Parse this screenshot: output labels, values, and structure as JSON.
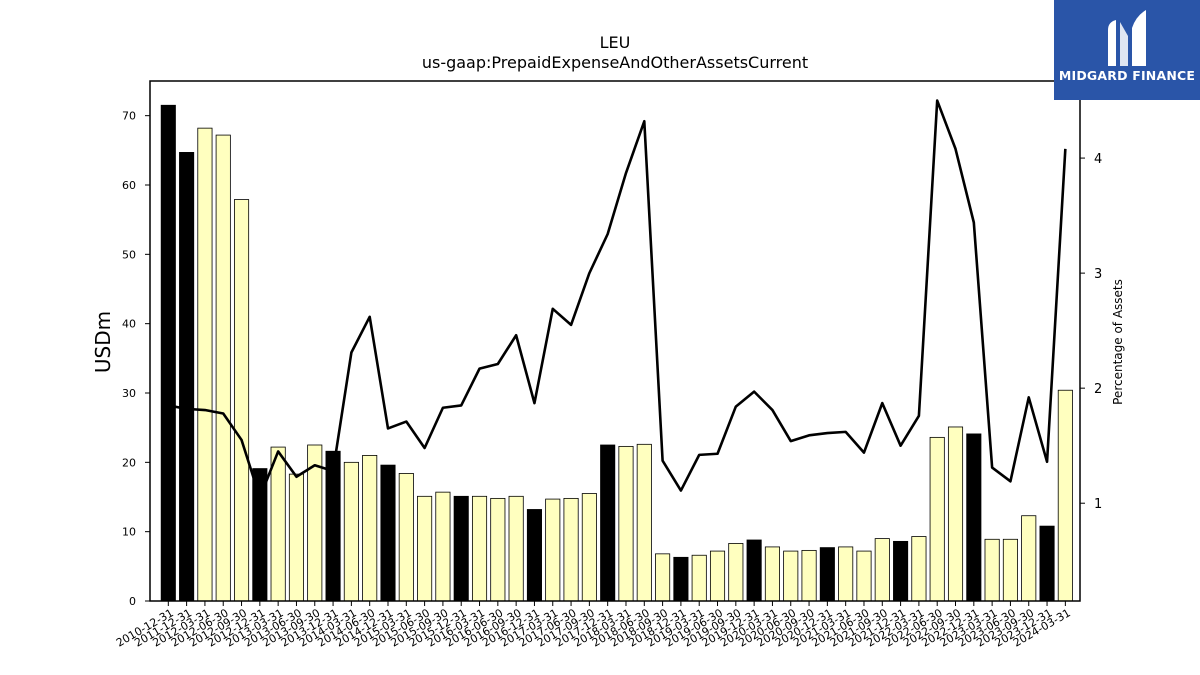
{
  "chart_data": {
    "type": "bar+line",
    "title": "LEU",
    "subtitle": "us-gaap:PrepaidExpenseAndOtherAssetsCurrent",
    "ylabel": "USDm",
    "y2label": "Percentage of Assets",
    "ylim": [
      0,
      75
    ],
    "y2lim": [
      0.15,
      4.67
    ],
    "yticks": [
      0,
      10,
      20,
      30,
      40,
      50,
      60,
      70
    ],
    "y2ticks": [
      1,
      2,
      3,
      4
    ],
    "colors": {
      "annual_bar": "#000000",
      "quarter_bar": "#ffffbf",
      "line": "#000000"
    },
    "categories": [
      "2010-12-31",
      "2011-12-31",
      "2012-03-31",
      "2012-06-30",
      "2012-09-30",
      "2012-12-31",
      "2013-03-31",
      "2013-06-30",
      "2013-09-30",
      "2013-12-31",
      "2014-03-31",
      "2014-06-30",
      "2014-12-31",
      "2015-03-31",
      "2015-06-30",
      "2015-09-30",
      "2015-12-31",
      "2016-03-31",
      "2016-06-30",
      "2016-09-30",
      "2016-12-31",
      "2017-03-31",
      "2017-06-30",
      "2017-09-30",
      "2017-12-31",
      "2018-03-31",
      "2018-06-30",
      "2018-09-30",
      "2018-12-31",
      "2019-03-31",
      "2019-06-30",
      "2019-09-30",
      "2019-12-31",
      "2020-03-31",
      "2020-06-30",
      "2020-09-30",
      "2020-12-31",
      "2021-03-31",
      "2021-06-30",
      "2021-09-30",
      "2021-12-31",
      "2022-03-31",
      "2022-06-30",
      "2022-09-30",
      "2022-12-31",
      "2023-03-31",
      "2023-06-30",
      "2023-09-30",
      "2023-12-31",
      "2024-03-31"
    ],
    "series": [
      {
        "type": "bar",
        "values": [
          71.5,
          64.7,
          68.2,
          67.2,
          57.9,
          19.1,
          22.2,
          18.3,
          22.5,
          21.6,
          20.0,
          21.0,
          19.6,
          18.4,
          15.1,
          15.7,
          15.1,
          15.1,
          14.8,
          15.1,
          13.2,
          14.7,
          14.8,
          15.5,
          22.5,
          22.3,
          22.6,
          6.8,
          6.3,
          6.6,
          7.2,
          8.3,
          8.8,
          7.8,
          7.2,
          7.3,
          7.7,
          7.8,
          7.2,
          9.0,
          8.6,
          9.3,
          23.6,
          25.1,
          24.1,
          8.9,
          8.9,
          12.3,
          10.8,
          30.4
        ],
        "annual": [
          true,
          true,
          false,
          false,
          false,
          true,
          false,
          false,
          false,
          true,
          false,
          false,
          true,
          false,
          false,
          false,
          true,
          false,
          false,
          false,
          true,
          false,
          false,
          false,
          true,
          false,
          false,
          false,
          true,
          false,
          false,
          false,
          true,
          false,
          false,
          false,
          true,
          false,
          false,
          false,
          true,
          false,
          false,
          false,
          true,
          false,
          false,
          false,
          true,
          false
        ]
      },
      {
        "type": "line",
        "axis": "right",
        "values": [
          1.85,
          1.82,
          1.81,
          1.78,
          1.55,
          1.05,
          1.45,
          1.23,
          1.33,
          1.28,
          2.31,
          2.62,
          1.65,
          1.71,
          1.48,
          1.83,
          1.85,
          2.17,
          2.21,
          2.46,
          1.87,
          2.69,
          2.55,
          3.0,
          3.34,
          3.87,
          4.32,
          1.37,
          1.11,
          1.42,
          1.43,
          1.84,
          1.97,
          1.81,
          1.54,
          1.59,
          1.61,
          1.62,
          1.44,
          1.87,
          1.5,
          1.76,
          4.5,
          4.08,
          3.44,
          1.31,
          1.19,
          1.92,
          1.36,
          4.08
        ]
      }
    ]
  },
  "logo": {
    "text": "MIDGARD FINANCE"
  }
}
